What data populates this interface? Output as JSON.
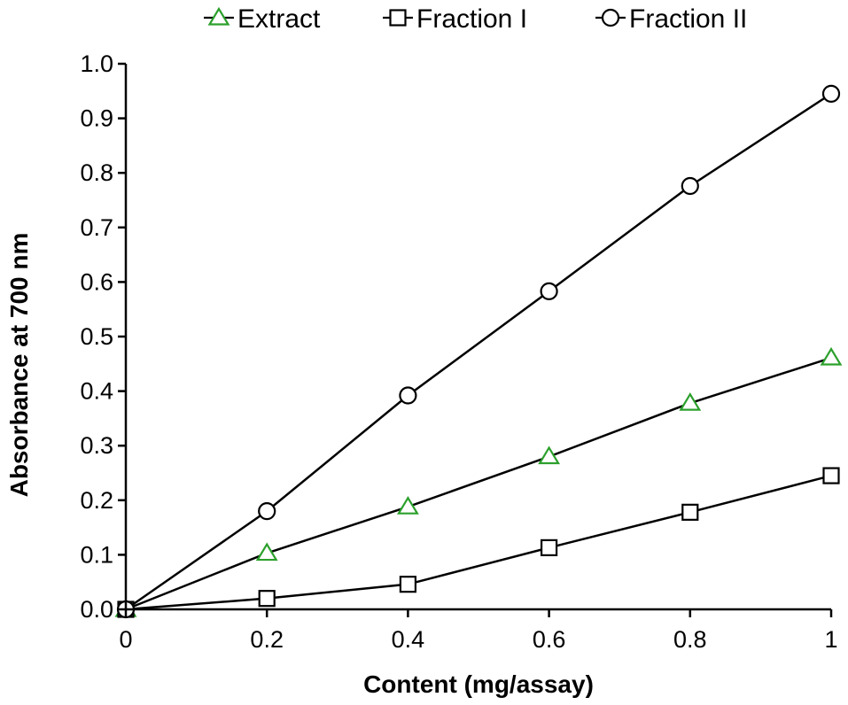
{
  "chart_data": {
    "type": "line",
    "title": "",
    "xlabel": "Content (mg/assay)",
    "ylabel": "Absorbance at 700 nm",
    "xlim": [
      0,
      1
    ],
    "ylim": [
      0,
      1.0
    ],
    "x_ticks": [
      {
        "value": 0,
        "label": "0"
      },
      {
        "value": 0.2,
        "label": "0.2"
      },
      {
        "value": 0.4,
        "label": "0.4"
      },
      {
        "value": 0.6,
        "label": "0.6"
      },
      {
        "value": 0.8,
        "label": "0.8"
      },
      {
        "value": 1,
        "label": "1"
      }
    ],
    "y_ticks": [
      {
        "value": 0.0,
        "label": "0.0"
      },
      {
        "value": 0.1,
        "label": "0.1"
      },
      {
        "value": 0.2,
        "label": "0.2"
      },
      {
        "value": 0.3,
        "label": "0.3"
      },
      {
        "value": 0.4,
        "label": "0.4"
      },
      {
        "value": 0.5,
        "label": "0.5"
      },
      {
        "value": 0.6,
        "label": "0.6"
      },
      {
        "value": 0.7,
        "label": "0.7"
      },
      {
        "value": 0.8,
        "label": "0.8"
      },
      {
        "value": 0.9,
        "label": "0.9"
      },
      {
        "value": 1.0,
        "label": "1.0"
      }
    ],
    "grid": false,
    "legend_position": "top",
    "x": [
      0,
      0.2,
      0.4,
      0.6,
      0.8,
      1
    ],
    "series": [
      {
        "name": "Extract",
        "marker": "triangle",
        "marker_color": "#2ca02c",
        "line_color": "#000000",
        "values": [
          0.0,
          0.103,
          0.188,
          0.28,
          0.378,
          0.461
        ]
      },
      {
        "name": "Fraction I",
        "marker": "square",
        "marker_color": "#000000",
        "line_color": "#000000",
        "values": [
          0.0,
          0.02,
          0.046,
          0.113,
          0.178,
          0.245
        ]
      },
      {
        "name": "Fraction II",
        "marker": "circle",
        "marker_color": "#000000",
        "line_color": "#000000",
        "values": [
          0.0,
          0.18,
          0.392,
          0.583,
          0.776,
          0.945
        ]
      }
    ]
  }
}
